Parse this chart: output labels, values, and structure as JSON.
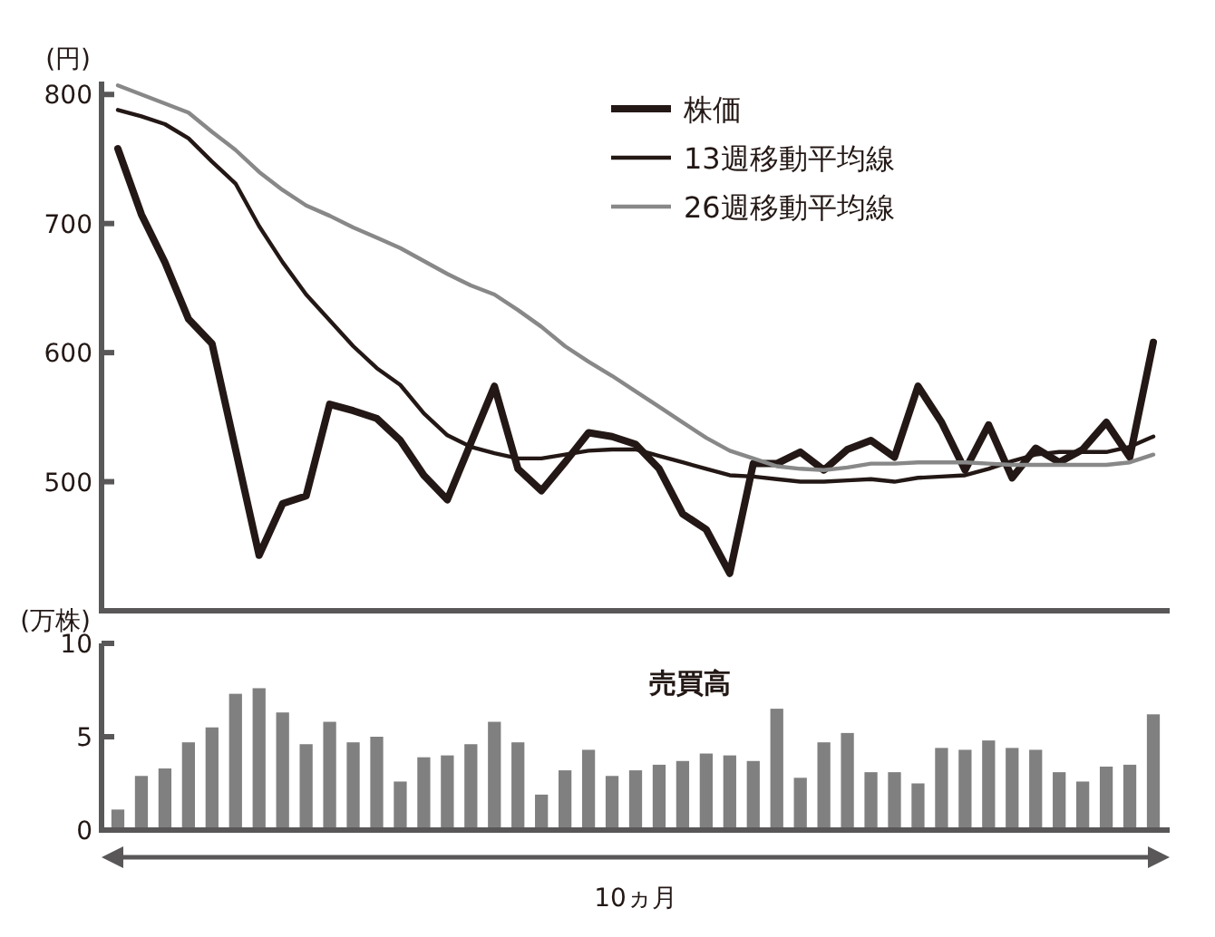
{
  "chart_data": [
    {
      "type": "line",
      "ylabel": "(円)",
      "categories": [
        null,
        null,
        null,
        null,
        null,
        null,
        null,
        null,
        null,
        null,
        null,
        null,
        null,
        null,
        null,
        null,
        null,
        null,
        null,
        null,
        null,
        null,
        null,
        null,
        null,
        null,
        null,
        null,
        null,
        null,
        null,
        null,
        null,
        null,
        null,
        null,
        null,
        null,
        null,
        null,
        null,
        null,
        null,
        null,
        null
      ],
      "ylim": [
        400,
        810
      ],
      "yticks": [
        500,
        600,
        700,
        800
      ],
      "tick_labels": "y",
      "legend": "top right",
      "series": [
        {
          "name": "株価",
          "color": "#231815",
          "values": [
            758,
            707,
            670,
            626,
            607,
            525,
            443,
            483,
            489,
            560,
            555,
            549,
            532,
            505,
            486,
            530,
            574,
            510,
            493,
            515,
            538,
            535,
            529,
            510,
            475,
            463,
            429,
            514,
            514,
            523,
            509,
            525,
            532,
            519,
            574,
            546,
            509,
            544,
            503,
            526,
            515,
            525,
            546,
            519,
            608
          ]
        },
        {
          "name": "13週移動平均線",
          "color": "#231815",
          "values": [
            788,
            783,
            777,
            766,
            748,
            731,
            698,
            670,
            645,
            625,
            605,
            588,
            575,
            553,
            536,
            527,
            522,
            518,
            518,
            521,
            524,
            525,
            525,
            520,
            515,
            510,
            505,
            504,
            502,
            500,
            500,
            501,
            502,
            500,
            503,
            504,
            505,
            510,
            516,
            521,
            523,
            523,
            523,
            527,
            535
          ]
        },
        {
          "name": "26週移動平均線",
          "color": "#888888",
          "values": [
            807,
            800,
            793,
            786,
            771,
            757,
            740,
            726,
            714,
            706,
            697,
            689,
            681,
            671,
            661,
            652,
            645,
            633,
            620,
            605,
            593,
            582,
            570,
            558,
            546,
            534,
            524,
            518,
            512,
            510,
            509,
            511,
            514,
            514,
            515,
            515,
            515,
            514,
            513,
            513,
            513,
            513,
            513,
            515,
            521
          ]
        }
      ]
    },
    {
      "type": "bar",
      "title": "売買高",
      "ylabel": "(万株)",
      "xlabel": "10ヵ月",
      "categories": [
        null,
        null,
        null,
        null,
        null,
        null,
        null,
        null,
        null,
        null,
        null,
        null,
        null,
        null,
        null,
        null,
        null,
        null,
        null,
        null,
        null,
        null,
        null,
        null,
        null,
        null,
        null,
        null,
        null,
        null,
        null,
        null,
        null,
        null,
        null,
        null,
        null,
        null,
        null,
        null,
        null,
        null,
        null,
        null,
        null
      ],
      "ylim": [
        0,
        10
      ],
      "yticks": [
        0,
        5,
        10
      ],
      "tick_labels": "y",
      "color": "#808080",
      "values": [
        1.1,
        2.9,
        3.3,
        4.7,
        5.5,
        7.3,
        7.6,
        6.3,
        4.6,
        5.8,
        4.7,
        5.0,
        2.6,
        3.9,
        4.0,
        4.6,
        5.8,
        4.7,
        1.9,
        3.2,
        4.3,
        2.9,
        3.2,
        3.5,
        3.7,
        4.1,
        4.0,
        3.7,
        6.5,
        2.8,
        4.7,
        5.2,
        3.1,
        3.1,
        2.5,
        4.4,
        4.3,
        4.8,
        4.4,
        4.3,
        3.1,
        2.6,
        3.4,
        3.5,
        6.2
      ]
    }
  ]
}
